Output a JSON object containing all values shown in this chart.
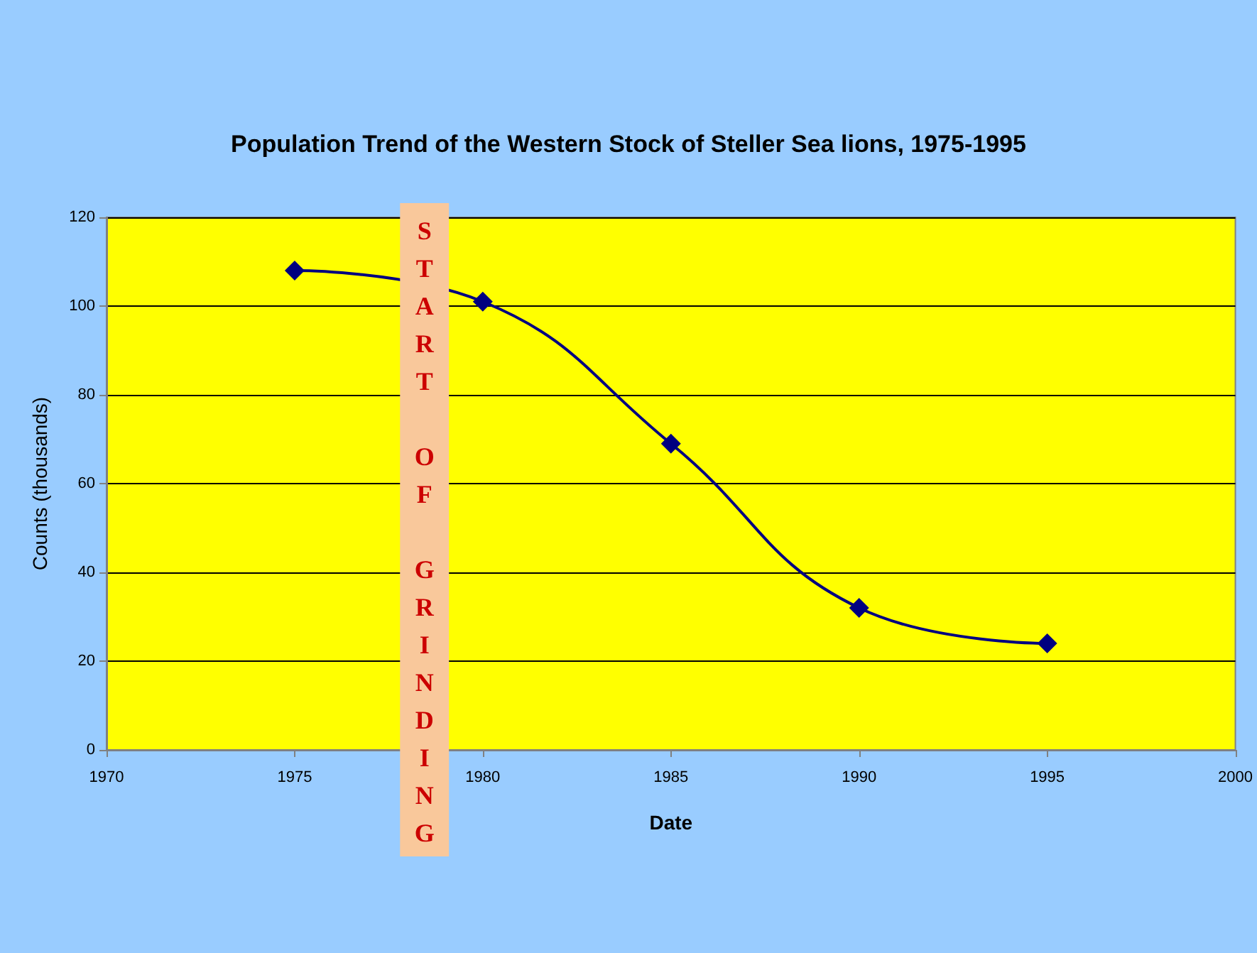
{
  "chart_data": {
    "type": "line",
    "title": "Population Trend of the Western Stock of Steller Sea lions, 1975-1995",
    "xlabel": "Date",
    "ylabel": "Counts (thousands)",
    "x": [
      1975,
      1980,
      1985,
      1990,
      1995
    ],
    "series": [
      {
        "color": "#000080",
        "values": [
          108,
          101,
          69,
          32,
          24
        ]
      }
    ],
    "xlim": [
      1970,
      2000
    ],
    "xticks": [
      1970,
      1975,
      1980,
      1985,
      1990,
      1995,
      2000
    ],
    "ylim": [
      0,
      120
    ],
    "yticks": [
      0,
      20,
      40,
      60,
      80,
      100,
      120
    ],
    "bands": [
      {
        "axis": "x",
        "from": 1977.8,
        "to": 1979.1,
        "label": "START OF GRINDING",
        "color": "#f9c89b"
      }
    ],
    "grid": "y",
    "marker": "diamond",
    "line_style": "solid"
  }
}
